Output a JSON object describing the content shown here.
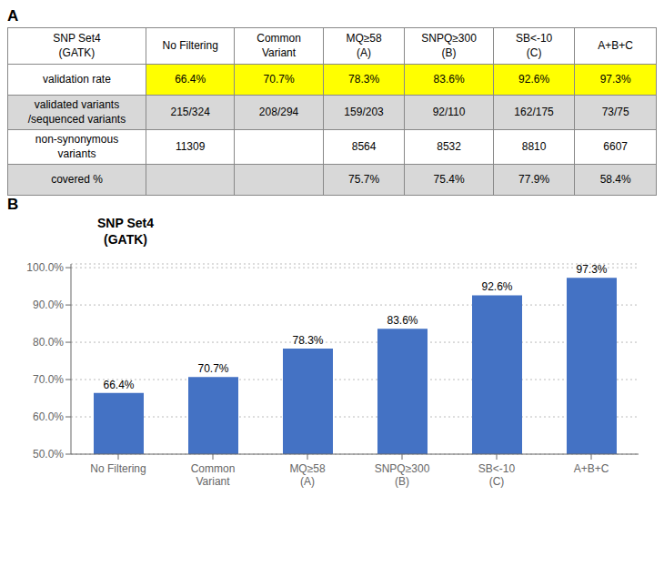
{
  "chart_data": [
    {
      "type": "table",
      "annotations": [
        "A"
      ],
      "columns": [
        "SNP Set4\n(GATK)",
        "No Filtering",
        "Common\nVariant",
        "MQ≥58\n(A)",
        "SNPQ≥300\n(B)",
        "SB<-10\n(C)",
        "A+B+C"
      ],
      "rows": [
        {
          "label": "validation rate",
          "values": [
            "66.4%",
            "70.7%",
            "78.3%",
            "83.6%",
            "92.6%",
            "97.3%"
          ],
          "color": "#FFFF00"
        },
        {
          "label": "validated variants\n/sequenced  variants",
          "values": [
            "215/324",
            "208/294",
            "159/203",
            "92/110",
            "162/175",
            "73/75"
          ]
        },
        {
          "label": "non-synonymous\nvariants",
          "values": [
            "11309",
            "",
            "8564",
            "8532",
            "8810",
            "6607"
          ]
        },
        {
          "label": "covered %",
          "values": [
            "",
            "",
            "75.7%",
            "75.4%",
            "77.9%",
            "58.4%"
          ]
        }
      ]
    },
    {
      "type": "bar",
      "annotations": [
        "B"
      ],
      "title": "SNP Set4\n(GATK)",
      "categories": [
        "No Filtering",
        "Common\nVariant",
        "MQ≥58\n(A)",
        "SNPQ≥300\n(B)",
        "SB<-10\n(C)",
        "A+B+C"
      ],
      "values": [
        66.4,
        70.7,
        78.3,
        83.6,
        92.6,
        97.3
      ],
      "value_labels": [
        "66.4%",
        "70.7%",
        "78.3%",
        "83.6%",
        "92.6%",
        "97.3%"
      ],
      "color": "#4472C4",
      "data_labels": true,
      "ylim": [
        50,
        101
      ],
      "yticks": [
        {
          "value": 50,
          "label": "50.0%"
        },
        {
          "value": 60,
          "label": "60.0%"
        },
        {
          "value": 70,
          "label": "70.0%"
        },
        {
          "value": 80,
          "label": "80.0%"
        },
        {
          "value": 90,
          "label": "90.0%"
        },
        {
          "value": 100,
          "label": "100.0%"
        }
      ],
      "grid": true
    }
  ]
}
